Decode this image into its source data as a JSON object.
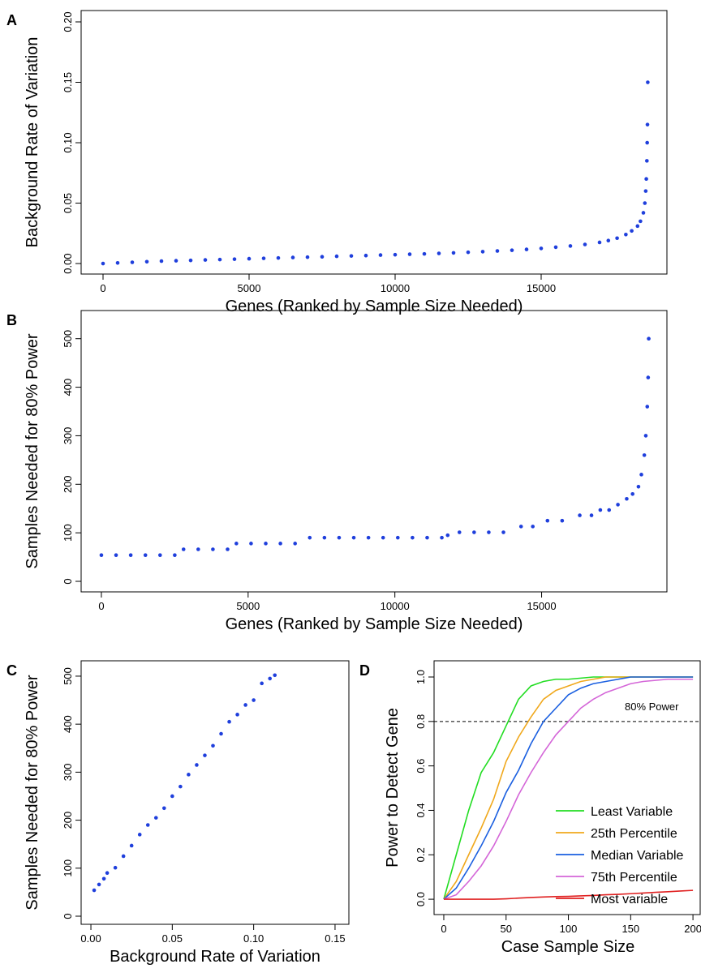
{
  "chart_data": [
    {
      "type": "scatter",
      "label": "A",
      "xlabel": "Genes (Ranked by Sample Size Needed)",
      "ylabel": "Background Rate of Variation",
      "color": "#1f3fdc",
      "x": [
        0,
        500,
        1000,
        1500,
        2000,
        2500,
        3000,
        3500,
        4000,
        4500,
        5000,
        5500,
        6000,
        6500,
        7000,
        7500,
        8000,
        8500,
        9000,
        9500,
        10000,
        10500,
        11000,
        11500,
        12000,
        12500,
        13000,
        13500,
        14000,
        14500,
        15000,
        15500,
        16000,
        16500,
        17000,
        17300,
        17600,
        17900,
        18100,
        18300,
        18400,
        18500,
        18550,
        18580,
        18600,
        18620,
        18630,
        18640,
        18650
      ],
      "y": [
        0,
        0.0005,
        0.001,
        0.0015,
        0.002,
        0.0023,
        0.0026,
        0.003,
        0.0033,
        0.0036,
        0.004,
        0.0043,
        0.0046,
        0.005,
        0.0053,
        0.0056,
        0.006,
        0.0063,
        0.0066,
        0.007,
        0.0073,
        0.0077,
        0.008,
        0.0084,
        0.0088,
        0.0093,
        0.0098,
        0.0104,
        0.011,
        0.0117,
        0.0125,
        0.0135,
        0.0145,
        0.0158,
        0.0175,
        0.019,
        0.021,
        0.024,
        0.027,
        0.031,
        0.035,
        0.042,
        0.05,
        0.06,
        0.07,
        0.085,
        0.1,
        0.115,
        0.15
      ],
      "xlim": [
        -750,
        19306
      ],
      "ylim": [
        -0.0087,
        0.2094
      ],
      "xticks": [
        0,
        5000,
        10000,
        15000
      ],
      "yticks": [
        {
          "value": 0,
          "label": "0.00"
        },
        0.05,
        {
          "value": 0.1,
          "label": "0.10"
        },
        0.15,
        {
          "value": 0.2,
          "label": "0.20"
        }
      ]
    },
    {
      "type": "scatter",
      "label": "B",
      "xlabel": "Genes (Ranked by Sample Size Needed)",
      "ylabel": "Samples Needed for 80% Power",
      "color": "#1f3fdc",
      "x": [
        0,
        500,
        1000,
        1500,
        2000,
        2500,
        2800,
        3300,
        3800,
        4300,
        4600,
        5100,
        5600,
        6100,
        6600,
        7100,
        7600,
        8100,
        8600,
        9100,
        9600,
        10100,
        10600,
        11100,
        11600,
        11800,
        12200,
        12700,
        13200,
        13700,
        14300,
        14700,
        15200,
        15700,
        16300,
        16700,
        17000,
        17300,
        17600,
        17900,
        18100,
        18300,
        18400,
        18500,
        18550,
        18600,
        18630,
        18650
      ],
      "y": [
        54,
        54,
        54,
        54,
        54,
        54,
        66,
        66,
        66,
        66,
        78,
        78,
        78,
        78,
        78,
        90,
        90,
        90,
        90,
        90,
        90,
        90,
        90,
        90,
        90,
        95,
        101,
        101,
        101,
        101,
        113,
        113,
        125,
        125,
        136,
        136,
        147,
        147,
        158,
        170,
        180,
        195,
        220,
        260,
        300,
        360,
        420,
        500
      ],
      "xlim": [
        -690,
        19270
      ],
      "ylim": [
        -21.7,
        558
      ],
      "xticks": [
        0,
        5000,
        10000,
        15000
      ],
      "yticks": [
        0,
        100,
        200,
        300,
        400,
        500
      ]
    },
    {
      "type": "scatter",
      "label": "C",
      "xlabel": "Background Rate of Variation",
      "ylabel": "Samples Needed for 80% Power",
      "color": "#1f3fdc",
      "x": [
        0.002,
        0.005,
        0.008,
        0.01,
        0.015,
        0.02,
        0.025,
        0.03,
        0.035,
        0.04,
        0.045,
        0.05,
        0.055,
        0.06,
        0.065,
        0.07,
        0.075,
        0.08,
        0.085,
        0.09,
        0.095,
        0.1,
        0.105,
        0.11,
        0.113
      ],
      "y": [
        54,
        66,
        78,
        90,
        101,
        125,
        147,
        170,
        190,
        205,
        225,
        250,
        270,
        295,
        315,
        335,
        355,
        380,
        405,
        420,
        440,
        450,
        485,
        495,
        502
      ],
      "xlim": [
        -0.006,
        0.1585
      ],
      "ylim": [
        -16.9,
        532
      ],
      "xticks": [
        {
          "value": 0,
          "label": "0.00"
        },
        0.05,
        {
          "value": 0.1,
          "label": "0.10"
        },
        0.15
      ],
      "yticks": [
        0,
        100,
        200,
        300,
        400,
        500
      ]
    },
    {
      "type": "line",
      "label": "D",
      "xlabel": "Case Sample Size",
      "ylabel": "Power to Detect Gene",
      "annotation": "80% Power",
      "hline": 0.8,
      "legend": "right",
      "x": [
        0,
        10,
        20,
        30,
        40,
        50,
        60,
        70,
        80,
        90,
        100,
        110,
        120,
        130,
        140,
        150,
        160,
        170,
        180,
        190,
        200
      ],
      "series": [
        {
          "name": "Least Variable",
          "color": "#22dd22",
          "values": [
            0,
            0.2,
            0.4,
            0.57,
            0.66,
            0.78,
            0.9,
            0.96,
            0.98,
            0.99,
            0.99,
            0.995,
            1,
            1,
            1,
            1,
            1,
            1,
            1,
            1,
            1
          ]
        },
        {
          "name": "25th Percentile",
          "color": "#f0a81c",
          "values": [
            0,
            0.08,
            0.2,
            0.32,
            0.45,
            0.62,
            0.73,
            0.82,
            0.9,
            0.94,
            0.96,
            0.98,
            0.99,
            1,
            1,
            1,
            1,
            1,
            1,
            1,
            1
          ]
        },
        {
          "name": "Median Variable",
          "color": "#1a5fe0",
          "values": [
            0,
            0.05,
            0.14,
            0.24,
            0.35,
            0.48,
            0.58,
            0.7,
            0.8,
            0.86,
            0.92,
            0.95,
            0.97,
            0.98,
            0.99,
            1,
            1,
            1,
            1,
            1,
            1
          ]
        },
        {
          "name": "75th Percentile",
          "color": "#d466d8",
          "values": [
            0,
            0.02,
            0.08,
            0.15,
            0.24,
            0.35,
            0.47,
            0.57,
            0.66,
            0.74,
            0.8,
            0.86,
            0.9,
            0.93,
            0.95,
            0.97,
            0.98,
            0.985,
            0.99,
            0.99,
            0.99
          ]
        },
        {
          "name": "Most variable",
          "color": "#e02020",
          "values": [
            0,
            0,
            0,
            0,
            0,
            0.002,
            0.005,
            0.008,
            0.01,
            0.012,
            0.013,
            0.015,
            0.017,
            0.02,
            0.022,
            0.025,
            0.028,
            0.031,
            0.034,
            0.037,
            0.04
          ]
        }
      ],
      "xlim": [
        -7.8,
        205.8
      ],
      "ylim": [
        -0.069,
        1.073
      ],
      "xticks": [
        0,
        50,
        100,
        150,
        200
      ],
      "yticks": [
        {
          "value": 0,
          "label": "0.0"
        },
        0.2,
        0.4,
        0.6,
        0.8,
        {
          "value": 1,
          "label": "1.0"
        }
      ]
    }
  ]
}
